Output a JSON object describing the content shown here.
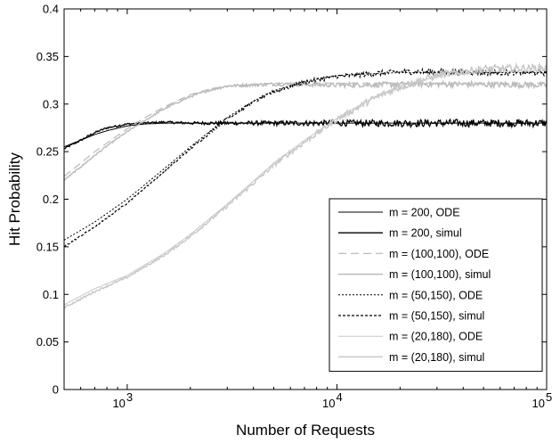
{
  "chart_data": {
    "type": "line",
    "title": "",
    "xlabel": "Number of Requests",
    "ylabel": "Hit Probability",
    "x_scale": "log",
    "xlim": [
      500,
      100000
    ],
    "ylim": [
      0,
      0.4
    ],
    "x_ticks": [
      {
        "value": 1000,
        "base": "10",
        "exp": "3"
      },
      {
        "value": 10000,
        "base": "10",
        "exp": "4"
      },
      {
        "value": 100000,
        "base": "10",
        "exp": "5"
      }
    ],
    "y_ticks": [
      {
        "value": 0,
        "label": "0"
      },
      {
        "value": 0.05,
        "label": "0.05"
      },
      {
        "value": 0.1,
        "label": "0.1"
      },
      {
        "value": 0.15,
        "label": "0.15"
      },
      {
        "value": 0.2,
        "label": "0.2"
      },
      {
        "value": 0.25,
        "label": "0.25"
      },
      {
        "value": 0.3,
        "label": "0.3"
      },
      {
        "value": 0.35,
        "label": "0.35"
      },
      {
        "value": 0.4,
        "label": "0.4"
      }
    ],
    "grid": false,
    "legend_position": "bottom-right",
    "series": [
      {
        "name": "m = 200, ODE",
        "color": "#000000",
        "dash": "solid",
        "width": 1.0,
        "noise": 0,
        "x": [
          500,
          600,
          700,
          800,
          1000,
          1200,
          1500,
          2000,
          3000,
          5000,
          10000,
          30000,
          100000
        ],
        "y": [
          0.255,
          0.262,
          0.268,
          0.272,
          0.277,
          0.279,
          0.28,
          0.28,
          0.28,
          0.28,
          0.28,
          0.28,
          0.28
        ]
      },
      {
        "name": "m = 200, simul",
        "color": "#000000",
        "dash": "solid",
        "width": 1.3,
        "noise": 0.004,
        "x": [
          500,
          600,
          700,
          800,
          1000,
          1200,
          1500,
          2000,
          3000,
          5000,
          10000,
          30000,
          100000
        ],
        "y": [
          0.253,
          0.262,
          0.27,
          0.275,
          0.279,
          0.28,
          0.281,
          0.28,
          0.28,
          0.28,
          0.28,
          0.28,
          0.28
        ]
      },
      {
        "name": "m = (100,100), ODE",
        "color": "#bbbbbb",
        "dash": "9,5",
        "width": 1.2,
        "noise": 0,
        "x": [
          500,
          600,
          700,
          800,
          1000,
          1200,
          1500,
          2000,
          2500,
          3000,
          5000,
          10000,
          30000,
          100000
        ],
        "y": [
          0.224,
          0.238,
          0.25,
          0.259,
          0.274,
          0.285,
          0.297,
          0.31,
          0.316,
          0.319,
          0.322,
          0.322,
          0.322,
          0.322
        ]
      },
      {
        "name": "m = (100,100), simul",
        "color": "#bbbbbb",
        "dash": "solid",
        "width": 1.5,
        "noise": 0.003,
        "x": [
          500,
          600,
          700,
          800,
          1000,
          1200,
          1500,
          2000,
          2500,
          3000,
          5000,
          10000,
          30000,
          100000
        ],
        "y": [
          0.22,
          0.234,
          0.246,
          0.256,
          0.271,
          0.282,
          0.295,
          0.308,
          0.315,
          0.319,
          0.321,
          0.32,
          0.321,
          0.32
        ]
      },
      {
        "name": "m = (50,150), ODE",
        "color": "#000000",
        "dash": "2,2",
        "width": 1.0,
        "noise": 0,
        "x": [
          500,
          700,
          1000,
          1500,
          2000,
          3000,
          4000,
          5000,
          7000,
          10000,
          15000,
          20000,
          30000,
          50000,
          100000
        ],
        "y": [
          0.157,
          0.176,
          0.2,
          0.232,
          0.255,
          0.286,
          0.303,
          0.314,
          0.324,
          0.33,
          0.332,
          0.333,
          0.333,
          0.333,
          0.333
        ]
      },
      {
        "name": "m = (50,150), simul",
        "color": "#000000",
        "dash": "3,2",
        "width": 1.2,
        "noise": 0.003,
        "x": [
          500,
          700,
          1000,
          1500,
          2000,
          3000,
          4000,
          5000,
          7000,
          10000,
          15000,
          20000,
          30000,
          50000,
          100000
        ],
        "y": [
          0.15,
          0.171,
          0.196,
          0.229,
          0.253,
          0.285,
          0.302,
          0.313,
          0.323,
          0.329,
          0.332,
          0.334,
          0.334,
          0.333,
          0.333
        ]
      },
      {
        "name": "m = (20,180), ODE",
        "color": "#c8c8c8",
        "dash": "solid",
        "width": 1.0,
        "noise": 0,
        "x": [
          500,
          700,
          1000,
          1500,
          2000,
          3000,
          4000,
          5000,
          7000,
          10000,
          15000,
          20000,
          30000,
          50000,
          100000
        ],
        "y": [
          0.089,
          0.106,
          0.12,
          0.143,
          0.163,
          0.195,
          0.219,
          0.238,
          0.262,
          0.285,
          0.307,
          0.319,
          0.329,
          0.334,
          0.335
        ]
      },
      {
        "name": "m = (20,180), simul",
        "color": "#c8c8c8",
        "dash": "solid",
        "width": 1.5,
        "noise": 0.004,
        "x": [
          500,
          700,
          1000,
          1500,
          2000,
          3000,
          4000,
          5000,
          7000,
          10000,
          15000,
          20000,
          30000,
          50000,
          100000
        ],
        "y": [
          0.086,
          0.103,
          0.118,
          0.141,
          0.161,
          0.193,
          0.217,
          0.236,
          0.26,
          0.284,
          0.306,
          0.318,
          0.33,
          0.337,
          0.338
        ]
      }
    ]
  }
}
